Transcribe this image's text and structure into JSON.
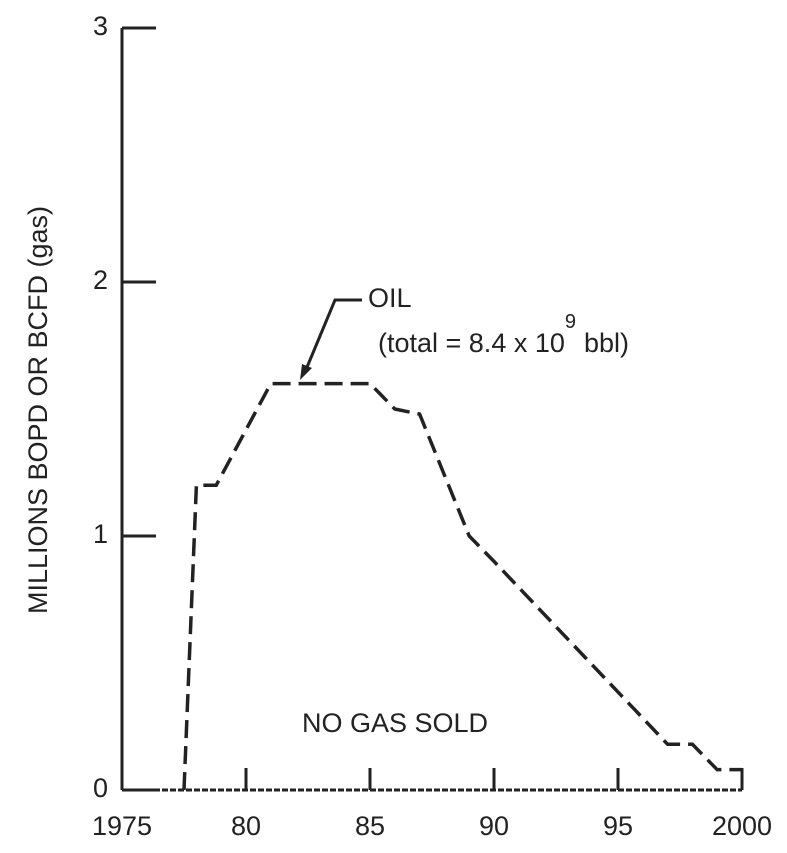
{
  "chart_data": {
    "type": "line",
    "y_label": "MILLIONS BOPD OR BCFD (gas)",
    "annotations": [
      "OIL",
      "(total = 8.4 x 10",
      "9",
      "bbl)",
      "NO GAS SOLD"
    ],
    "series": [
      {
        "name": "OIL",
        "color": "#222222",
        "dashed": true,
        "x": [
          1977.5,
          1978,
          1978.8,
          1981,
          1985,
          1986,
          1987,
          1989,
          1990,
          1997,
          1998,
          1999,
          2000
        ],
        "values": [
          0,
          1.2,
          1.2,
          1.6,
          1.6,
          1.5,
          1.48,
          1.0,
          0.9,
          0.18,
          0.18,
          0.08,
          0.08
        ]
      }
    ],
    "xlim": [
      1975,
      2000
    ],
    "xticks": [
      1975,
      {
        "value": 1980,
        "label": "80"
      },
      {
        "value": 1985,
        "label": "85"
      },
      {
        "value": 1990,
        "label": "90"
      },
      {
        "value": 1995,
        "label": "95"
      },
      2000
    ],
    "ylim": [
      0,
      3
    ],
    "yticks": [
      0,
      1,
      2,
      3
    ]
  }
}
